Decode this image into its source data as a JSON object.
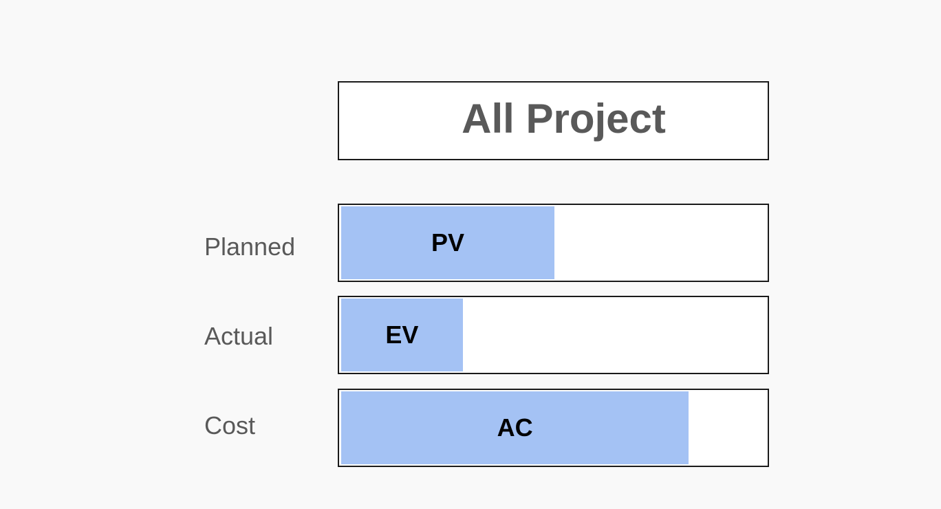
{
  "title": "All Project",
  "fill_color": "#a4c2f4",
  "rows": [
    {
      "label": "Planned",
      "bar_label": "PV",
      "fill_fraction": 0.5
    },
    {
      "label": "Actual",
      "bar_label": "EV",
      "fill_fraction": 0.285
    },
    {
      "label": "Cost",
      "bar_label": "AC",
      "fill_fraction": 0.815
    }
  ]
}
